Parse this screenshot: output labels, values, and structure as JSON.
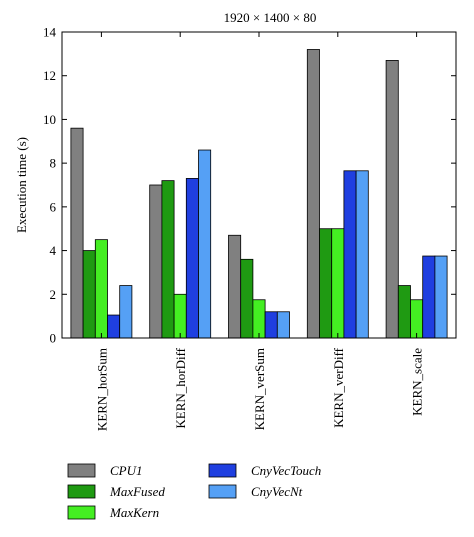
{
  "chart_data": {
    "type": "bar",
    "title": "1920 × 1400 × 80",
    "xlabel": "",
    "ylabel": "Execution time (s)",
    "ylim": [
      0,
      14
    ],
    "yticks": [
      0,
      2,
      4,
      6,
      8,
      10,
      12,
      14
    ],
    "categories": [
      "KERN_horSum",
      "KERN_horDiff",
      "KERN_verSum",
      "KERN_verDiff",
      "KERN_scale"
    ],
    "series": [
      {
        "name": "CPU1",
        "color": "#808080",
        "values": [
          9.6,
          7.0,
          4.7,
          13.2,
          12.7
        ]
      },
      {
        "name": "MaxFused",
        "color": "#1f9a12",
        "values": [
          4.0,
          7.2,
          3.6,
          5.0,
          2.4
        ]
      },
      {
        "name": "MaxKern",
        "color": "#44ee22",
        "values": [
          4.5,
          2.0,
          1.75,
          5.0,
          1.75
        ]
      },
      {
        "name": "CnyVecTouch",
        "color": "#1f3fe0",
        "values": [
          1.05,
          7.3,
          1.2,
          7.65,
          3.75
        ]
      },
      {
        "name": "CnyVecNt",
        "color": "#55a0f5",
        "values": [
          2.4,
          8.6,
          1.2,
          7.65,
          3.75
        ]
      }
    ],
    "grid": false,
    "legend_position": "bottom"
  }
}
